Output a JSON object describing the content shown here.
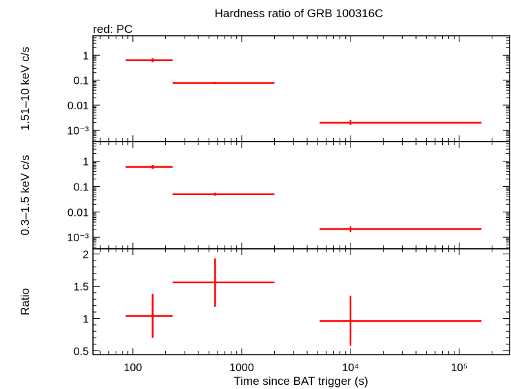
{
  "title": "Hardness ratio of GRB 100316C",
  "subtitle": "red: PC",
  "xlabel": "Time since BAT trigger (s)",
  "colors": {
    "data": "#ff0000",
    "axes": "#000000"
  },
  "chart_data": [
    {
      "type": "scatter",
      "panel": "top",
      "ylabel": "1.51–10 keV c/s",
      "xscale": "log",
      "yscale": "log",
      "xlim": [
        43,
        290000
      ],
      "ylim": [
        0.00035,
        6
      ],
      "yticks": [
        {
          "value": 1,
          "label": "1"
        },
        {
          "value": 0.1,
          "label": "0.1"
        },
        {
          "value": 0.01,
          "label": "0.01"
        },
        {
          "value": 0.001,
          "label": "10⁻³"
        }
      ],
      "series": [
        {
          "color": "#ff0000",
          "points": [
            {
              "x": 152,
              "x_lo": 86,
              "x_hi": 232,
              "y": 0.63,
              "y_lo": 0.53,
              "y_hi": 0.75
            },
            {
              "x": 570,
              "x_lo": 232,
              "x_hi": 2000,
              "y": 0.078,
              "y_lo": 0.071,
              "y_hi": 0.086
            },
            {
              "x": 10000,
              "x_lo": 5200,
              "x_hi": 160000,
              "y": 0.002,
              "y_lo": 0.0016,
              "y_hi": 0.0025
            }
          ]
        }
      ]
    },
    {
      "type": "scatter",
      "panel": "middle",
      "ylabel": "0.3–1.5 keV c/s",
      "xscale": "log",
      "yscale": "log",
      "xlim": [
        43,
        290000
      ],
      "ylim": [
        0.00035,
        6
      ],
      "yticks": [
        {
          "value": 1,
          "label": "1"
        },
        {
          "value": 0.1,
          "label": "0.1"
        },
        {
          "value": 0.01,
          "label": "0.01"
        },
        {
          "value": 0.001,
          "label": "10⁻³"
        }
      ],
      "series": [
        {
          "color": "#ff0000",
          "points": [
            {
              "x": 152,
              "x_lo": 86,
              "x_hi": 232,
              "y": 0.6,
              "y_lo": 0.5,
              "y_hi": 0.72
            },
            {
              "x": 570,
              "x_lo": 232,
              "x_hi": 2000,
              "y": 0.05,
              "y_lo": 0.044,
              "y_hi": 0.057
            },
            {
              "x": 10000,
              "x_lo": 5200,
              "x_hi": 160000,
              "y": 0.0021,
              "y_lo": 0.0016,
              "y_hi": 0.0027
            }
          ]
        }
      ]
    },
    {
      "type": "scatter",
      "panel": "bottom",
      "ylabel": "Ratio",
      "xscale": "log",
      "yscale": "linear",
      "xlim": [
        43,
        290000
      ],
      "ylim": [
        0.44,
        2.08
      ],
      "yticks": [
        {
          "value": 2,
          "label": "2"
        },
        {
          "value": 1.5,
          "label": "1.5"
        },
        {
          "value": 1,
          "label": "1"
        },
        {
          "value": 0.5,
          "label": "0.5"
        }
      ],
      "xticks": [
        {
          "value": 100,
          "label": "100"
        },
        {
          "value": 1000,
          "label": "1000"
        },
        {
          "value": 10000,
          "label": "10⁴"
        },
        {
          "value": 100000,
          "label": "10⁵"
        }
      ],
      "series": [
        {
          "color": "#ff0000",
          "points": [
            {
              "x": 152,
              "x_lo": 86,
              "x_hi": 232,
              "y": 1.04,
              "y_lo": 0.7,
              "y_hi": 1.38
            },
            {
              "x": 570,
              "x_lo": 232,
              "x_hi": 2000,
              "y": 1.56,
              "y_lo": 1.18,
              "y_hi": 1.93
            },
            {
              "x": 10000,
              "x_lo": 5200,
              "x_hi": 160000,
              "y": 0.96,
              "y_lo": 0.58,
              "y_hi": 1.35
            }
          ]
        }
      ]
    }
  ]
}
